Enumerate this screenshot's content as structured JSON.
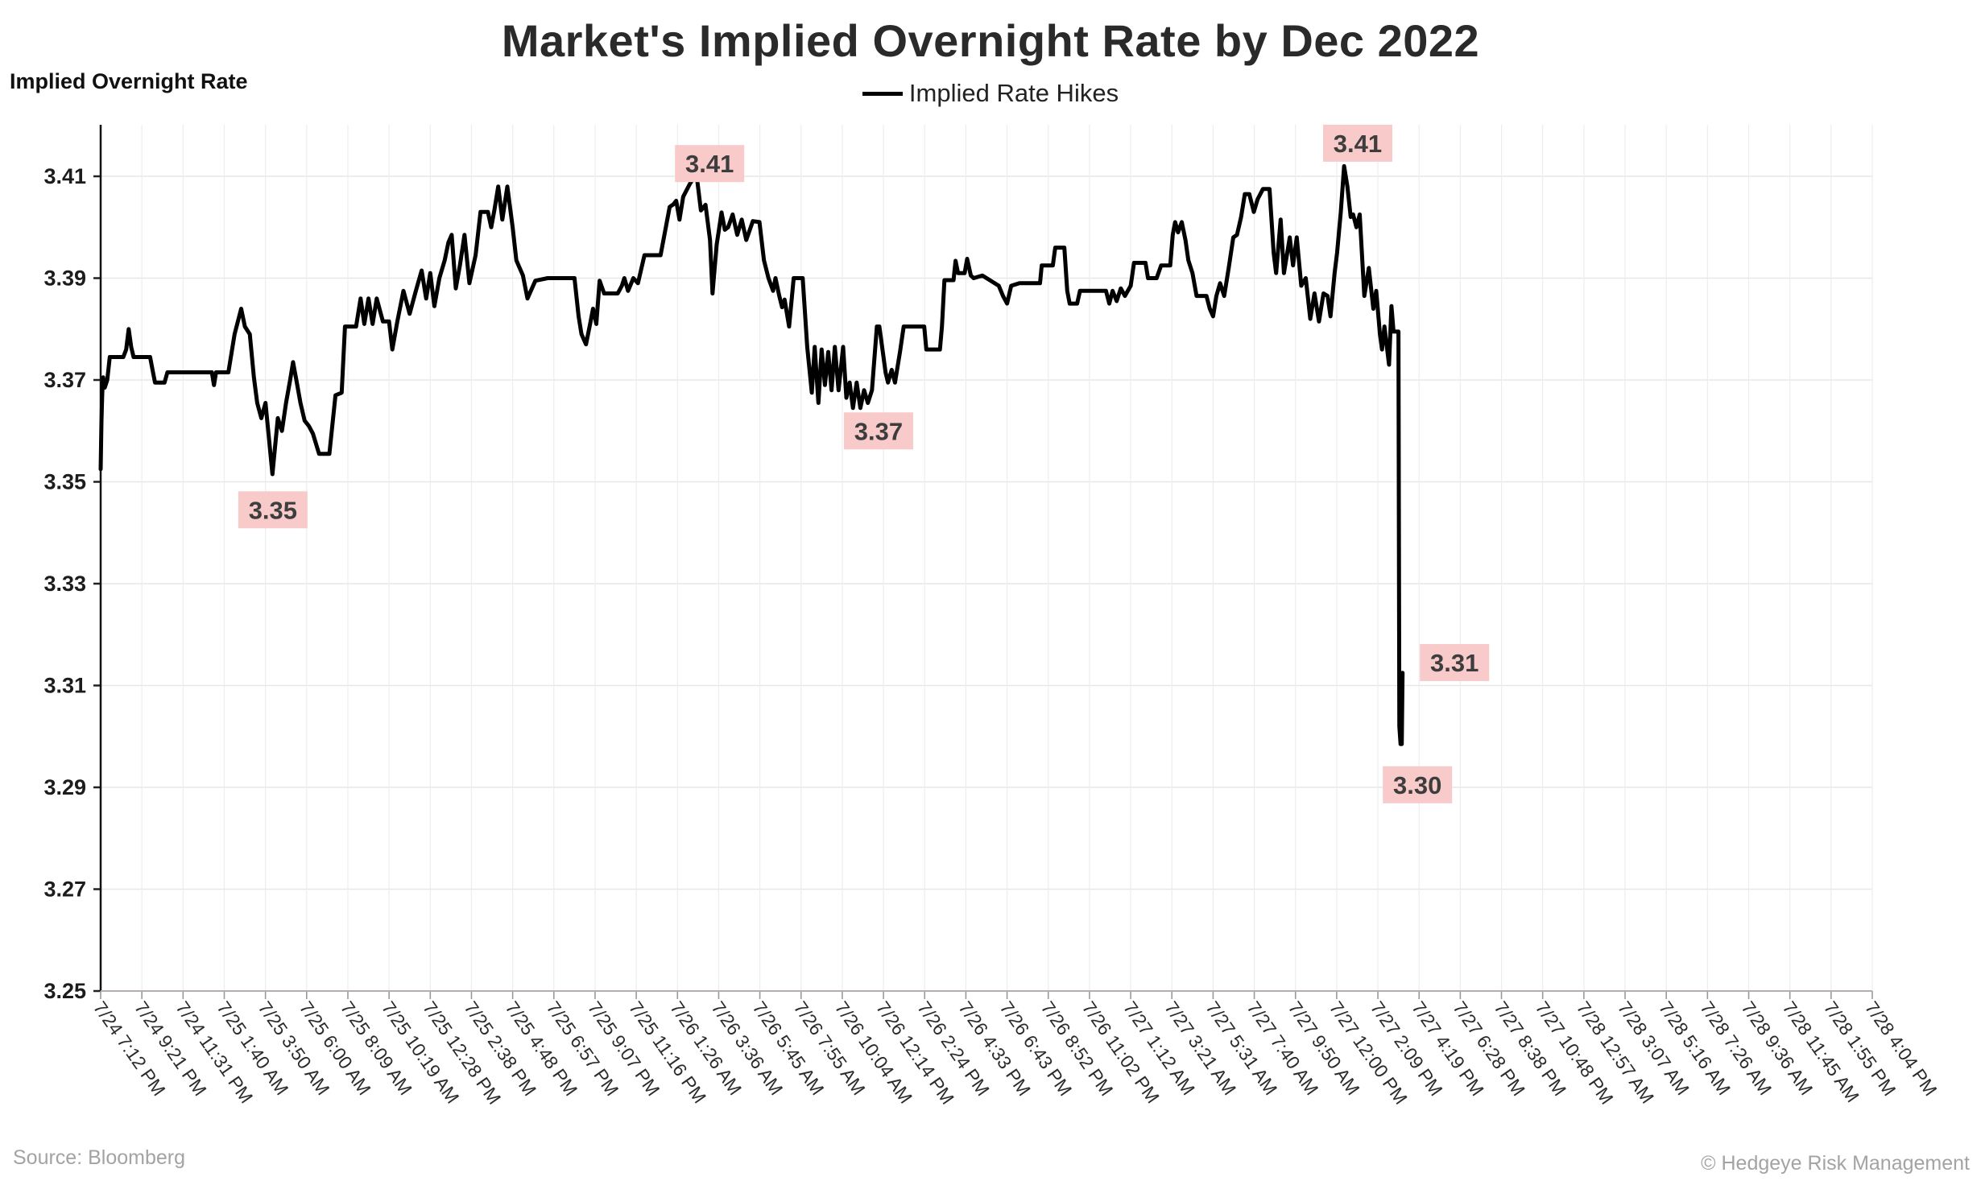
{
  "title": "Market's Implied Overnight Rate by Dec 2022",
  "legend": {
    "label": "Implied Rate Hikes",
    "line_color": "#000000"
  },
  "y_axis_title": "Implied Overnight Rate",
  "source": "Source: Bloomberg",
  "copyright": "© Hedgeye Risk Management",
  "colors": {
    "line": "#000000",
    "annotation_bg": "#f8caca",
    "annotation_text": "#3d3d3d",
    "grid_h": "#e7e7e7",
    "grid_v": "#ededed",
    "left_spine": "#111111",
    "bottom_spine": "#b5aeae",
    "y_tick_label": "#1c1c1c",
    "x_tick_label": "#2b2b2b",
    "x_tick_mark": "#999999",
    "y_tick_mark": "#222222"
  },
  "chart_data": {
    "type": "line",
    "title": "Market's Implied Overnight Rate by Dec 2022",
    "series_name": "Implied Rate Hikes",
    "xlabel": "",
    "ylabel": "Implied Overnight Rate",
    "ylim": [
      3.25,
      3.42
    ],
    "grid": true,
    "legend_position": "top-center",
    "y_ticks": [
      3.25,
      3.27,
      3.29,
      3.31,
      3.33,
      3.35,
      3.37,
      3.39,
      3.41
    ],
    "x_tick_labels": [
      "7/24 7:12 PM",
      "7/24 9:21 PM",
      "7/24 11:31 PM",
      "7/25 1:40 AM",
      "7/25 3:50 AM",
      "7/25 6:00 AM",
      "7/25 8:09 AM",
      "7/25 10:19 AM",
      "7/25 12:28 PM",
      "7/25 2:38 PM",
      "7/25 4:48 PM",
      "7/25 6:57 PM",
      "7/25 9:07 PM",
      "7/25 11:16 PM",
      "7/26 1:26 AM",
      "7/26 3:36 AM",
      "7/26 5:45 AM",
      "7/26 7:55 AM",
      "7/26 10:04 AM",
      "7/26 12:14 PM",
      "7/26 2:24 PM",
      "7/26 4:33 PM",
      "7/26 6:43 PM",
      "7/26 8:52 PM",
      "7/26 11:02 PM",
      "7/27 1:12 AM",
      "7/27 3:21 AM",
      "7/27 5:31 AM",
      "7/27 7:40 AM",
      "7/27 9:50 AM",
      "7/27 12:00 PM",
      "7/27 2:09 PM",
      "7/27 4:19 PM",
      "7/27 6:28 PM",
      "7/27 8:38 PM",
      "7/27 10:48 PM",
      "7/28 12:57 AM",
      "7/28 3:07 AM",
      "7/28 5:16 AM",
      "7/28 7:26 AM",
      "7/28 9:36 AM",
      "7/28 11:45 AM",
      "7/28 1:55 PM",
      "7/28 4:04 PM"
    ],
    "points": [
      [
        0.0,
        3.3525
      ],
      [
        0.02,
        3.362
      ],
      [
        0.04,
        3.3675
      ],
      [
        0.06,
        3.3705
      ],
      [
        0.1,
        3.3685
      ],
      [
        0.16,
        3.37
      ],
      [
        0.22,
        3.3745
      ],
      [
        0.55,
        3.3745
      ],
      [
        0.62,
        3.376
      ],
      [
        0.68,
        3.38
      ],
      [
        0.74,
        3.3765
      ],
      [
        0.8,
        3.3745
      ],
      [
        1.2,
        3.3745
      ],
      [
        1.27,
        3.3715
      ],
      [
        1.32,
        3.3695
      ],
      [
        1.55,
        3.3695
      ],
      [
        1.62,
        3.3715
      ],
      [
        2.7,
        3.3715
      ],
      [
        2.75,
        3.369
      ],
      [
        2.8,
        3.3715
      ],
      [
        3.1,
        3.3715
      ],
      [
        3.25,
        3.379
      ],
      [
        3.41,
        3.384
      ],
      [
        3.5,
        3.3805
      ],
      [
        3.62,
        3.379
      ],
      [
        3.72,
        3.3705
      ],
      [
        3.8,
        3.3655
      ],
      [
        3.9,
        3.3625
      ],
      [
        4.0,
        3.3655
      ],
      [
        4.08,
        3.359
      ],
      [
        4.17,
        3.3515
      ],
      [
        4.3,
        3.3625
      ],
      [
        4.4,
        3.36
      ],
      [
        4.5,
        3.3655
      ],
      [
        4.6,
        3.37
      ],
      [
        4.67,
        3.3735
      ],
      [
        4.75,
        3.37
      ],
      [
        4.85,
        3.3655
      ],
      [
        4.95,
        3.362
      ],
      [
        5.05,
        3.361
      ],
      [
        5.15,
        3.3595
      ],
      [
        5.3,
        3.3555
      ],
      [
        5.55,
        3.3555
      ],
      [
        5.7,
        3.367
      ],
      [
        5.85,
        3.3675
      ],
      [
        5.93,
        3.3805
      ],
      [
        6.2,
        3.3805
      ],
      [
        6.31,
        3.386
      ],
      [
        6.4,
        3.381
      ],
      [
        6.5,
        3.386
      ],
      [
        6.6,
        3.381
      ],
      [
        6.7,
        3.386
      ],
      [
        6.85,
        3.3815
      ],
      [
        7.0,
        3.3815
      ],
      [
        7.08,
        3.376
      ],
      [
        7.2,
        3.3815
      ],
      [
        7.35,
        3.3875
      ],
      [
        7.5,
        3.383
      ],
      [
        7.65,
        3.3875
      ],
      [
        7.79,
        3.3915
      ],
      [
        7.9,
        3.386
      ],
      [
        8.0,
        3.391
      ],
      [
        8.1,
        3.3845
      ],
      [
        8.22,
        3.39
      ],
      [
        8.35,
        3.3935
      ],
      [
        8.44,
        3.397
      ],
      [
        8.52,
        3.3985
      ],
      [
        8.62,
        3.388
      ],
      [
        8.72,
        3.3925
      ],
      [
        8.83,
        3.3985
      ],
      [
        8.95,
        3.389
      ],
      [
        9.1,
        3.3945
      ],
      [
        9.22,
        3.403
      ],
      [
        9.4,
        3.403
      ],
      [
        9.48,
        3.4
      ],
      [
        9.56,
        3.4035
      ],
      [
        9.65,
        3.408
      ],
      [
        9.75,
        3.4015
      ],
      [
        9.87,
        3.408
      ],
      [
        10.0,
        3.4
      ],
      [
        10.09,
        3.3935
      ],
      [
        10.25,
        3.3905
      ],
      [
        10.36,
        3.386
      ],
      [
        10.55,
        3.3895
      ],
      [
        10.85,
        3.39
      ],
      [
        11.5,
        3.39
      ],
      [
        11.6,
        3.3825
      ],
      [
        11.67,
        3.379
      ],
      [
        11.78,
        3.377
      ],
      [
        11.88,
        3.381
      ],
      [
        11.95,
        3.384
      ],
      [
        12.03,
        3.381
      ],
      [
        12.11,
        3.3895
      ],
      [
        12.22,
        3.387
      ],
      [
        12.55,
        3.387
      ],
      [
        12.65,
        3.3885
      ],
      [
        12.71,
        3.39
      ],
      [
        12.8,
        3.3875
      ],
      [
        12.93,
        3.39
      ],
      [
        13.04,
        3.389
      ],
      [
        13.2,
        3.3945
      ],
      [
        13.59,
        3.3945
      ],
      [
        13.81,
        3.404
      ],
      [
        13.9,
        3.4045
      ],
      [
        13.97,
        3.4052
      ],
      [
        14.05,
        3.4015
      ],
      [
        14.14,
        3.406
      ],
      [
        14.3,
        3.4085
      ],
      [
        14.46,
        3.4105
      ],
      [
        14.57,
        3.4033
      ],
      [
        14.68,
        3.4044
      ],
      [
        14.79,
        3.3975
      ],
      [
        14.85,
        3.387
      ],
      [
        14.95,
        3.3965
      ],
      [
        15.07,
        3.4029
      ],
      [
        15.15,
        3.3995
      ],
      [
        15.23,
        3.4
      ],
      [
        15.34,
        3.4025
      ],
      [
        15.45,
        3.3985
      ],
      [
        15.56,
        3.4015
      ],
      [
        15.67,
        3.3975
      ],
      [
        15.83,
        3.4012
      ],
      [
        15.99,
        3.401
      ],
      [
        16.1,
        3.3935
      ],
      [
        16.21,
        3.39
      ],
      [
        16.32,
        3.3875
      ],
      [
        16.38,
        3.39
      ],
      [
        16.47,
        3.3865
      ],
      [
        16.54,
        3.3843
      ],
      [
        16.6,
        3.3858
      ],
      [
        16.71,
        3.3805
      ],
      [
        16.82,
        3.39
      ],
      [
        17.04,
        3.39
      ],
      [
        17.15,
        3.3765
      ],
      [
        17.26,
        3.3675
      ],
      [
        17.33,
        3.3765
      ],
      [
        17.42,
        3.3655
      ],
      [
        17.5,
        3.376
      ],
      [
        17.58,
        3.369
      ],
      [
        17.66,
        3.3755
      ],
      [
        17.74,
        3.368
      ],
      [
        17.82,
        3.3765
      ],
      [
        17.91,
        3.368
      ],
      [
        18.02,
        3.3765
      ],
      [
        18.1,
        3.3665
      ],
      [
        18.18,
        3.3695
      ],
      [
        18.26,
        3.3645
      ],
      [
        18.35,
        3.3695
      ],
      [
        18.44,
        3.3645
      ],
      [
        18.53,
        3.368
      ],
      [
        18.62,
        3.3655
      ],
      [
        18.72,
        3.368
      ],
      [
        18.84,
        3.3805
      ],
      [
        18.9,
        3.3805
      ],
      [
        19.05,
        3.3715
      ],
      [
        19.11,
        3.3695
      ],
      [
        19.2,
        3.372
      ],
      [
        19.28,
        3.3695
      ],
      [
        19.4,
        3.3755
      ],
      [
        19.49,
        3.3805
      ],
      [
        19.99,
        3.3805
      ],
      [
        20.04,
        3.376
      ],
      [
        20.37,
        3.376
      ],
      [
        20.42,
        3.3805
      ],
      [
        20.48,
        3.3896
      ],
      [
        20.7,
        3.3896
      ],
      [
        20.75,
        3.3934
      ],
      [
        20.81,
        3.391
      ],
      [
        20.97,
        3.391
      ],
      [
        21.03,
        3.3938
      ],
      [
        21.12,
        3.3905
      ],
      [
        21.19,
        3.39
      ],
      [
        21.4,
        3.3905
      ],
      [
        21.8,
        3.3885
      ],
      [
        21.9,
        3.3865
      ],
      [
        22.0,
        3.385
      ],
      [
        22.1,
        3.3885
      ],
      [
        22.3,
        3.389
      ],
      [
        22.8,
        3.389
      ],
      [
        22.84,
        3.3925
      ],
      [
        23.11,
        3.3925
      ],
      [
        23.17,
        3.396
      ],
      [
        23.39,
        3.396
      ],
      [
        23.46,
        3.3875
      ],
      [
        23.52,
        3.385
      ],
      [
        23.7,
        3.385
      ],
      [
        23.77,
        3.3875
      ],
      [
        24.4,
        3.3875
      ],
      [
        24.48,
        3.385
      ],
      [
        24.56,
        3.3875
      ],
      [
        24.66,
        3.3855
      ],
      [
        24.76,
        3.388
      ],
      [
        24.86,
        3.3865
      ],
      [
        25.0,
        3.3885
      ],
      [
        25.08,
        3.393
      ],
      [
        25.36,
        3.393
      ],
      [
        25.42,
        3.39
      ],
      [
        25.63,
        3.39
      ],
      [
        25.74,
        3.3925
      ],
      [
        25.96,
        3.3925
      ],
      [
        26.02,
        3.3985
      ],
      [
        26.08,
        3.401
      ],
      [
        26.15,
        3.399
      ],
      [
        26.24,
        3.401
      ],
      [
        26.33,
        3.3975
      ],
      [
        26.4,
        3.3935
      ],
      [
        26.5,
        3.391
      ],
      [
        26.6,
        3.3865
      ],
      [
        26.84,
        3.3865
      ],
      [
        26.92,
        3.384
      ],
      [
        27.0,
        3.3825
      ],
      [
        27.08,
        3.3865
      ],
      [
        27.17,
        3.389
      ],
      [
        27.27,
        3.3865
      ],
      [
        27.38,
        3.392
      ],
      [
        27.49,
        3.398
      ],
      [
        27.58,
        3.3985
      ],
      [
        27.68,
        3.402
      ],
      [
        27.77,
        3.4065
      ],
      [
        27.88,
        3.4065
      ],
      [
        27.99,
        3.403
      ],
      [
        28.08,
        3.4055
      ],
      [
        28.21,
        3.4075
      ],
      [
        28.37,
        3.4075
      ],
      [
        28.47,
        3.395
      ],
      [
        28.53,
        3.391
      ],
      [
        28.64,
        3.4015
      ],
      [
        28.72,
        3.391
      ],
      [
        28.86,
        3.398
      ],
      [
        28.94,
        3.3925
      ],
      [
        29.03,
        3.398
      ],
      [
        29.14,
        3.3885
      ],
      [
        29.25,
        3.39
      ],
      [
        29.36,
        3.382
      ],
      [
        29.46,
        3.387
      ],
      [
        29.57,
        3.3815
      ],
      [
        29.68,
        3.387
      ],
      [
        29.78,
        3.3865
      ],
      [
        29.85,
        3.3825
      ],
      [
        29.95,
        3.391
      ],
      [
        30.01,
        3.395
      ],
      [
        30.1,
        3.403
      ],
      [
        30.18,
        3.412
      ],
      [
        30.26,
        3.408
      ],
      [
        30.34,
        3.402
      ],
      [
        30.4,
        3.4025
      ],
      [
        30.48,
        3.4
      ],
      [
        30.56,
        3.4025
      ],
      [
        30.67,
        3.3865
      ],
      [
        30.78,
        3.392
      ],
      [
        30.89,
        3.384
      ],
      [
        30.96,
        3.3875
      ],
      [
        31.05,
        3.379
      ],
      [
        31.1,
        3.376
      ],
      [
        31.16,
        3.3805
      ],
      [
        31.27,
        3.373
      ],
      [
        31.33,
        3.3845
      ],
      [
        31.38,
        3.3795
      ],
      [
        31.5,
        3.3795
      ],
      [
        31.52,
        3.302
      ],
      [
        31.55,
        3.2985
      ],
      [
        31.58,
        3.2985
      ],
      [
        31.6,
        3.3125
      ]
    ],
    "annotations": [
      {
        "label": "3.35",
        "t": 4.18,
        "v": 3.3445
      },
      {
        "label": "3.41",
        "t": 14.78,
        "v": 3.4125
      },
      {
        "label": "3.37",
        "t": 18.88,
        "v": 3.36
      },
      {
        "label": "3.41",
        "t": 30.51,
        "v": 3.4165
      },
      {
        "label": "3.31",
        "t": 32.86,
        "v": 3.3145
      },
      {
        "label": "3.30",
        "t": 31.96,
        "v": 3.2905
      }
    ]
  }
}
